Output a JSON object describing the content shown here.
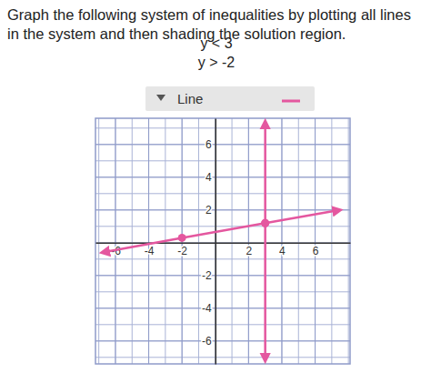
{
  "chart_data": {
    "type": "line",
    "title": "Graph the following system of inequalities by plotting all lines in the system and then shading the solution region.",
    "annotations": [
      "y < 3",
      "y > -2",
      "Line"
    ],
    "xlim": [
      -7.2,
      8.1
    ],
    "ylim": [
      -7.4,
      7.6
    ],
    "xticks": [
      -6,
      -4,
      -2,
      2,
      4,
      6
    ],
    "yticks": [
      -6,
      -4,
      -2,
      2,
      4,
      6
    ],
    "grid": true,
    "series": [
      {
        "color": "#e4579f",
        "marker": "circle",
        "x": [
          -6.8,
          -2,
          3,
          7.5
        ],
        "values": [
          -0.6,
          0.3,
          1.2,
          2.0
        ]
      },
      {
        "color": "#e4579f",
        "marker": "circle",
        "x": [
          3,
          3,
          3
        ],
        "values": [
          7.4,
          1.2,
          -7.2
        ]
      }
    ]
  }
}
